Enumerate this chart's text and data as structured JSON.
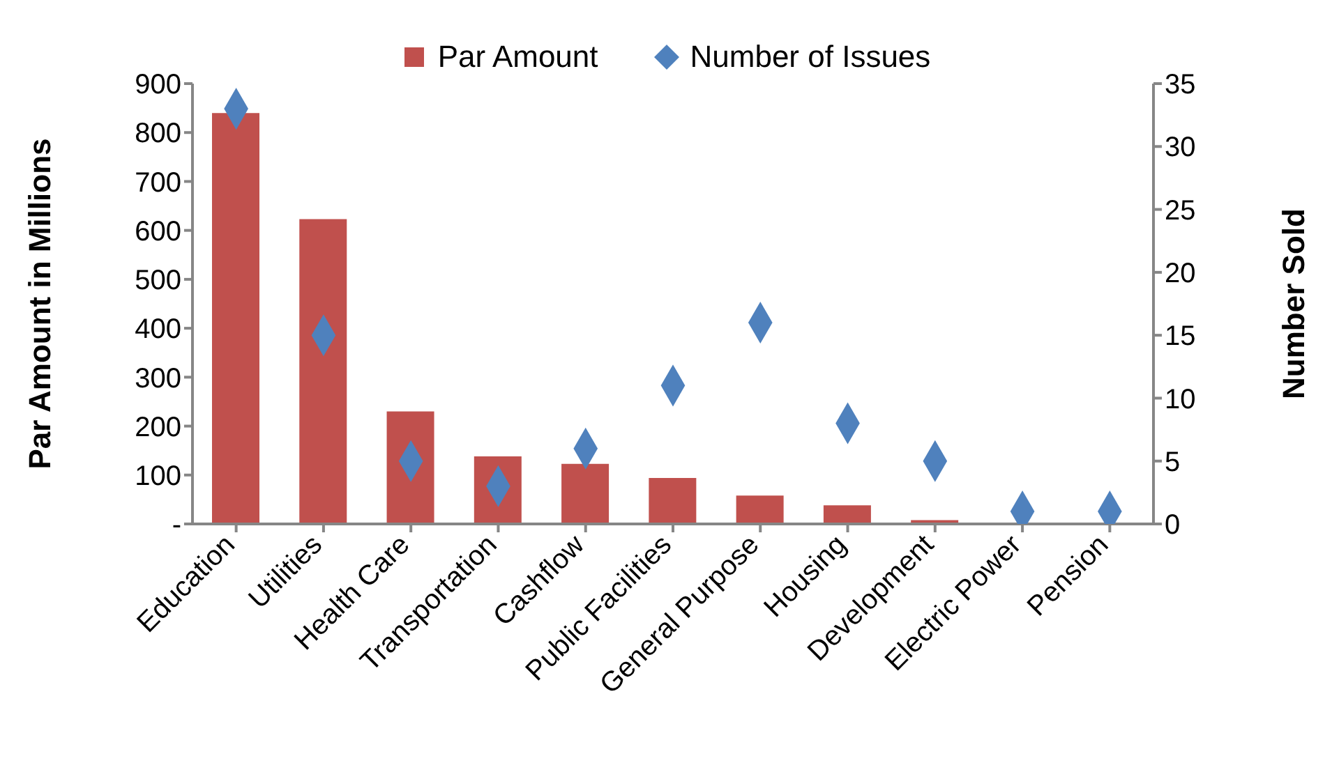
{
  "chart_data": {
    "type": "bar",
    "categories": [
      "Education",
      "Utilities",
      "Health Care",
      "Transportation",
      "Cashflow",
      "Public Facilities",
      "General Purpose",
      "Housing",
      "Development",
      "Electric Power",
      "Pension"
    ],
    "series": [
      {
        "name": "Par Amount",
        "color": "#c0504d",
        "values": [
          840,
          623,
          230,
          138,
          123,
          94,
          58,
          38,
          8,
          1,
          1
        ]
      },
      {
        "name": "Number of Issues",
        "type": "scatter",
        "axis": "y2",
        "color": "#4f81bd",
        "marker": "diamond",
        "values": [
          33,
          15,
          5,
          3,
          6,
          11,
          16,
          8,
          5,
          1,
          1
        ]
      }
    ],
    "ylabel": "Par Amount in Millions",
    "y2label": "Number Sold",
    "ylim": [
      0,
      900
    ],
    "yticks": [
      {
        "value": 0,
        "label": "-"
      },
      100,
      200,
      300,
      400,
      500,
      600,
      700,
      800,
      900
    ],
    "y2lim": [
      0,
      35
    ],
    "y2ticks": [
      0,
      5,
      10,
      15,
      20,
      25,
      30,
      35
    ],
    "grid": false,
    "legend": "top"
  }
}
